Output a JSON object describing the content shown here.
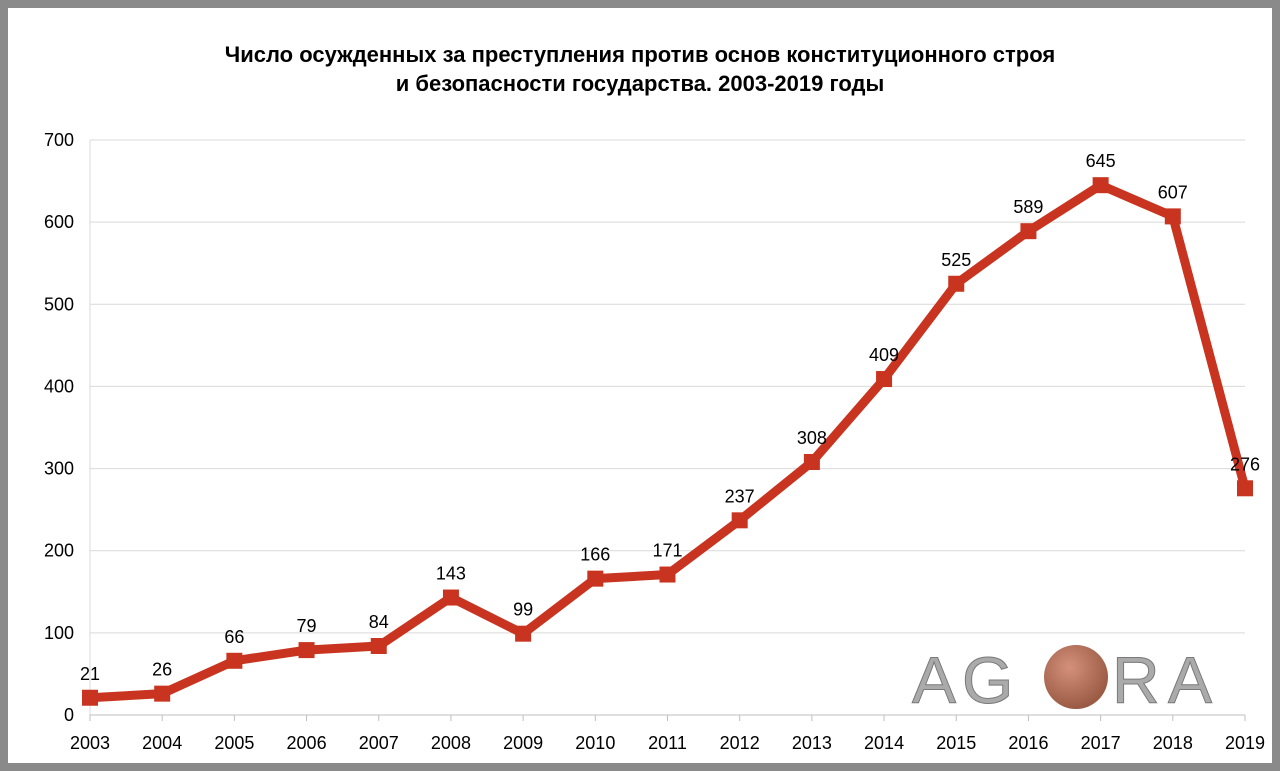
{
  "chart_data": {
    "type": "line",
    "title_line1": "Число осужденных за преступления против основ конституционного строя",
    "title_line2": "и безопасности государства. 2003-2019 годы",
    "xlabel": "",
    "ylabel": "",
    "categories": [
      "2003",
      "2004",
      "2005",
      "2006",
      "2007",
      "2008",
      "2009",
      "2010",
      "2011",
      "2012",
      "2013",
      "2014",
      "2015",
      "2016",
      "2017",
      "2018",
      "2019"
    ],
    "values": [
      21,
      26,
      66,
      79,
      84,
      143,
      99,
      166,
      171,
      237,
      308,
      409,
      525,
      589,
      645,
      607,
      276
    ],
    "ylim": [
      0,
      700
    ],
    "yticks": [
      0,
      100,
      200,
      300,
      400,
      500,
      600,
      700
    ],
    "grid": true,
    "data_labels": true,
    "line_color": "#c8341f",
    "grid_color": "#d9d9d9"
  },
  "logo": {
    "text": "AGORA",
    "color": "#b0b0b0",
    "circle_color": "#b07058"
  }
}
